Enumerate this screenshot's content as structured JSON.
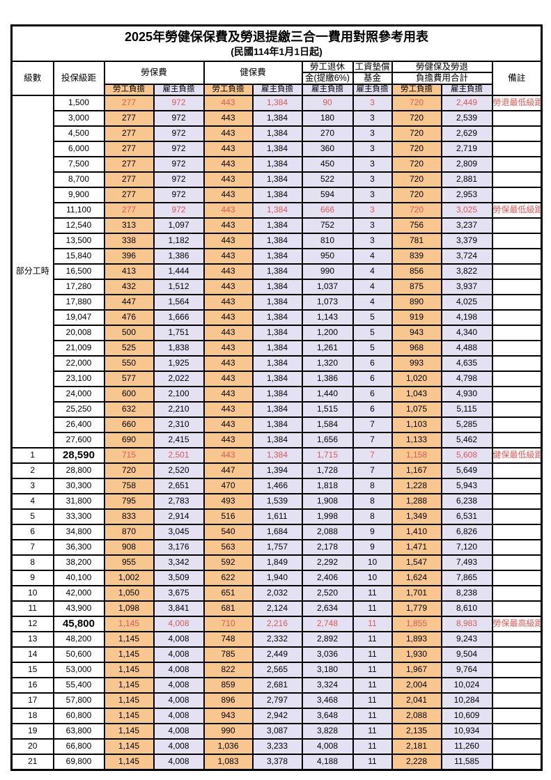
{
  "title": "2025年勞健保保費及勞退提繳三合一費用對照參考用表",
  "subtitle": "(民國114年1月1日起)",
  "header": {
    "level": "級數",
    "bracket": "投保級距",
    "labor_group": "勞保費",
    "health_group": "健保費",
    "pension_line1": "勞工退休",
    "pension_line2": "金(提繳6%)",
    "wage_fund_line1": "工資墊償",
    "wage_fund_line2": "基金",
    "total_line1": "勞健保及勞退",
    "total_line2": "負擔費用合計",
    "employee": "勞工負擔",
    "employer": "雇主負擔",
    "remark": "備註"
  },
  "part_time_label": "部分工時",
  "part_time_row_span": 23,
  "colors": {
    "orange": "#f8c78f",
    "lavender": "#e3e1f2",
    "red_text": "#e25855",
    "border": "#000000"
  },
  "rows": [
    {
      "level": "",
      "bracket": "1,500",
      "values": [
        "277",
        "972",
        "443",
        "1,384",
        "90",
        "3",
        "720",
        "2,449"
      ],
      "remark": "勞退最低級距",
      "special": true,
      "bold_bracket": false
    },
    {
      "level": "",
      "bracket": "3,000",
      "values": [
        "277",
        "972",
        "443",
        "1,384",
        "180",
        "3",
        "720",
        "2,539"
      ],
      "remark": "",
      "special": false,
      "bold_bracket": false
    },
    {
      "level": "",
      "bracket": "4,500",
      "values": [
        "277",
        "972",
        "443",
        "1,384",
        "270",
        "3",
        "720",
        "2,629"
      ],
      "remark": "",
      "special": false,
      "bold_bracket": false
    },
    {
      "level": "",
      "bracket": "6,000",
      "values": [
        "277",
        "972",
        "443",
        "1,384",
        "360",
        "3",
        "720",
        "2,719"
      ],
      "remark": "",
      "special": false,
      "bold_bracket": false
    },
    {
      "level": "",
      "bracket": "7,500",
      "values": [
        "277",
        "972",
        "443",
        "1,384",
        "450",
        "3",
        "720",
        "2,809"
      ],
      "remark": "",
      "special": false,
      "bold_bracket": false
    },
    {
      "level": "",
      "bracket": "8,700",
      "values": [
        "277",
        "972",
        "443",
        "1,384",
        "522",
        "3",
        "720",
        "2,881"
      ],
      "remark": "",
      "special": false,
      "bold_bracket": false
    },
    {
      "level": "",
      "bracket": "9,900",
      "values": [
        "277",
        "972",
        "443",
        "1,384",
        "594",
        "3",
        "720",
        "2,953"
      ],
      "remark": "",
      "special": false,
      "bold_bracket": false
    },
    {
      "level": "",
      "bracket": "11,100",
      "values": [
        "277",
        "972",
        "443",
        "1,384",
        "666",
        "3",
        "720",
        "3,025"
      ],
      "remark": "勞保最低級距",
      "special": true,
      "bold_bracket": false
    },
    {
      "level": "",
      "bracket": "12,540",
      "values": [
        "313",
        "1,097",
        "443",
        "1,384",
        "752",
        "3",
        "756",
        "3,237"
      ],
      "remark": "",
      "special": false,
      "bold_bracket": false
    },
    {
      "level": "",
      "bracket": "13,500",
      "values": [
        "338",
        "1,182",
        "443",
        "1,384",
        "810",
        "3",
        "781",
        "3,379"
      ],
      "remark": "",
      "special": false,
      "bold_bracket": false
    },
    {
      "level": "",
      "bracket": "15,840",
      "values": [
        "396",
        "1,386",
        "443",
        "1,384",
        "950",
        "4",
        "839",
        "3,724"
      ],
      "remark": "",
      "special": false,
      "bold_bracket": false
    },
    {
      "level": "",
      "bracket": "16,500",
      "values": [
        "413",
        "1,444",
        "443",
        "1,384",
        "990",
        "4",
        "856",
        "3,822"
      ],
      "remark": "",
      "special": false,
      "bold_bracket": false
    },
    {
      "level": "",
      "bracket": "17,280",
      "values": [
        "432",
        "1,512",
        "443",
        "1,384",
        "1,037",
        "4",
        "875",
        "3,937"
      ],
      "remark": "",
      "special": false,
      "bold_bracket": false
    },
    {
      "level": "",
      "bracket": "17,880",
      "values": [
        "447",
        "1,564",
        "443",
        "1,384",
        "1,073",
        "4",
        "890",
        "4,025"
      ],
      "remark": "",
      "special": false,
      "bold_bracket": false
    },
    {
      "level": "",
      "bracket": "19,047",
      "values": [
        "476",
        "1,666",
        "443",
        "1,384",
        "1,143",
        "5",
        "919",
        "4,198"
      ],
      "remark": "",
      "special": false,
      "bold_bracket": false
    },
    {
      "level": "",
      "bracket": "20,008",
      "values": [
        "500",
        "1,751",
        "443",
        "1,384",
        "1,200",
        "5",
        "943",
        "4,340"
      ],
      "remark": "",
      "special": false,
      "bold_bracket": false
    },
    {
      "level": "",
      "bracket": "21,009",
      "values": [
        "525",
        "1,838",
        "443",
        "1,384",
        "1,261",
        "5",
        "968",
        "4,488"
      ],
      "remark": "",
      "special": false,
      "bold_bracket": false
    },
    {
      "level": "",
      "bracket": "22,000",
      "values": [
        "550",
        "1,925",
        "443",
        "1,384",
        "1,320",
        "6",
        "993",
        "4,635"
      ],
      "remark": "",
      "special": false,
      "bold_bracket": false
    },
    {
      "level": "",
      "bracket": "23,100",
      "values": [
        "577",
        "2,022",
        "443",
        "1,384",
        "1,386",
        "6",
        "1,020",
        "4,798"
      ],
      "remark": "",
      "special": false,
      "bold_bracket": false
    },
    {
      "level": "",
      "bracket": "24,000",
      "values": [
        "600",
        "2,100",
        "443",
        "1,384",
        "1,440",
        "6",
        "1,043",
        "4,930"
      ],
      "remark": "",
      "special": false,
      "bold_bracket": false
    },
    {
      "level": "",
      "bracket": "25,250",
      "values": [
        "632",
        "2,210",
        "443",
        "1,384",
        "1,515",
        "6",
        "1,075",
        "5,115"
      ],
      "remark": "",
      "special": false,
      "bold_bracket": false
    },
    {
      "level": "",
      "bracket": "26,400",
      "values": [
        "660",
        "2,310",
        "443",
        "1,384",
        "1,584",
        "7",
        "1,103",
        "5,285"
      ],
      "remark": "",
      "special": false,
      "bold_bracket": false
    },
    {
      "level": "",
      "bracket": "27,600",
      "values": [
        "690",
        "2,415",
        "443",
        "1,384",
        "1,656",
        "7",
        "1,133",
        "5,462"
      ],
      "remark": "",
      "special": false,
      "bold_bracket": false
    },
    {
      "level": "1",
      "bracket": "28,590",
      "values": [
        "715",
        "2,501",
        "443",
        "1,384",
        "1,715",
        "7",
        "1,158",
        "5,608"
      ],
      "remark": "健保最低級距",
      "special": true,
      "bold_bracket": true
    },
    {
      "level": "2",
      "bracket": "28,800",
      "values": [
        "720",
        "2,520",
        "447",
        "1,394",
        "1,728",
        "7",
        "1,167",
        "5,649"
      ],
      "remark": "",
      "special": false,
      "bold_bracket": false
    },
    {
      "level": "3",
      "bracket": "30,300",
      "values": [
        "758",
        "2,651",
        "470",
        "1,466",
        "1,818",
        "8",
        "1,228",
        "5,943"
      ],
      "remark": "",
      "special": false,
      "bold_bracket": false
    },
    {
      "level": "4",
      "bracket": "31,800",
      "values": [
        "795",
        "2,783",
        "493",
        "1,539",
        "1,908",
        "8",
        "1,288",
        "6,238"
      ],
      "remark": "",
      "special": false,
      "bold_bracket": false
    },
    {
      "level": "5",
      "bracket": "33,300",
      "values": [
        "833",
        "2,914",
        "516",
        "1,611",
        "1,998",
        "8",
        "1,349",
        "6,531"
      ],
      "remark": "",
      "special": false,
      "bold_bracket": false
    },
    {
      "level": "6",
      "bracket": "34,800",
      "values": [
        "870",
        "3,045",
        "540",
        "1,684",
        "2,088",
        "9",
        "1,410",
        "6,826"
      ],
      "remark": "",
      "special": false,
      "bold_bracket": false
    },
    {
      "level": "7",
      "bracket": "36,300",
      "values": [
        "908",
        "3,176",
        "563",
        "1,757",
        "2,178",
        "9",
        "1,471",
        "7,120"
      ],
      "remark": "",
      "special": false,
      "bold_bracket": false
    },
    {
      "level": "8",
      "bracket": "38,200",
      "values": [
        "955",
        "3,342",
        "592",
        "1,849",
        "2,292",
        "10",
        "1,547",
        "7,493"
      ],
      "remark": "",
      "special": false,
      "bold_bracket": false
    },
    {
      "level": "9",
      "bracket": "40,100",
      "values": [
        "1,002",
        "3,509",
        "622",
        "1,940",
        "2,406",
        "10",
        "1,624",
        "7,865"
      ],
      "remark": "",
      "special": false,
      "bold_bracket": false
    },
    {
      "level": "10",
      "bracket": "42,000",
      "values": [
        "1,050",
        "3,675",
        "651",
        "2,032",
        "2,520",
        "11",
        "1,701",
        "8,238"
      ],
      "remark": "",
      "special": false,
      "bold_bracket": false
    },
    {
      "level": "11",
      "bracket": "43,900",
      "values": [
        "1,098",
        "3,841",
        "681",
        "2,124",
        "2,634",
        "11",
        "1,779",
        "8,610"
      ],
      "remark": "",
      "special": false,
      "bold_bracket": false
    },
    {
      "level": "12",
      "bracket": "45,800",
      "values": [
        "1,145",
        "4,008",
        "710",
        "2,216",
        "2,748",
        "11",
        "1,855",
        "8,983"
      ],
      "remark": "勞保最高級距",
      "special": true,
      "bold_bracket": true
    },
    {
      "level": "13",
      "bracket": "48,200",
      "values": [
        "1,145",
        "4,008",
        "748",
        "2,332",
        "2,892",
        "11",
        "1,893",
        "9,243"
      ],
      "remark": "",
      "special": false,
      "bold_bracket": false
    },
    {
      "level": "14",
      "bracket": "50,600",
      "values": [
        "1,145",
        "4,008",
        "785",
        "2,449",
        "3,036",
        "11",
        "1,930",
        "9,504"
      ],
      "remark": "",
      "special": false,
      "bold_bracket": false
    },
    {
      "level": "15",
      "bracket": "53,000",
      "values": [
        "1,145",
        "4,008",
        "822",
        "2,565",
        "3,180",
        "11",
        "1,967",
        "9,764"
      ],
      "remark": "",
      "special": false,
      "bold_bracket": false
    },
    {
      "level": "16",
      "bracket": "55,400",
      "values": [
        "1,145",
        "4,008",
        "859",
        "2,681",
        "3,324",
        "11",
        "2,004",
        "10,024"
      ],
      "remark": "",
      "special": false,
      "bold_bracket": false
    },
    {
      "level": "17",
      "bracket": "57,800",
      "values": [
        "1,145",
        "4,008",
        "896",
        "2,797",
        "3,468",
        "11",
        "2,041",
        "10,284"
      ],
      "remark": "",
      "special": false,
      "bold_bracket": false
    },
    {
      "level": "18",
      "bracket": "60,800",
      "values": [
        "1,145",
        "4,008",
        "943",
        "2,942",
        "3,648",
        "11",
        "2,088",
        "10,609"
      ],
      "remark": "",
      "special": false,
      "bold_bracket": false
    },
    {
      "level": "19",
      "bracket": "63,800",
      "values": [
        "1,145",
        "4,008",
        "990",
        "3,087",
        "3,828",
        "11",
        "2,135",
        "10,934"
      ],
      "remark": "",
      "special": false,
      "bold_bracket": false
    },
    {
      "level": "20",
      "bracket": "66,800",
      "values": [
        "1,145",
        "4,008",
        "1,036",
        "3,233",
        "4,008",
        "11",
        "2,181",
        "11,260"
      ],
      "remark": "",
      "special": false,
      "bold_bracket": false
    },
    {
      "level": "21",
      "bracket": "69,800",
      "values": [
        "1,145",
        "4,008",
        "1,083",
        "3,378",
        "4,188",
        "11",
        "2,228",
        "11,585"
      ],
      "remark": "",
      "special": false,
      "bold_bracket": false
    }
  ]
}
